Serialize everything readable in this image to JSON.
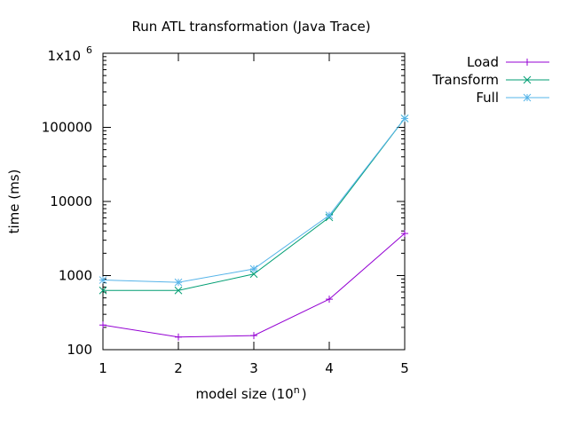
{
  "chart_data": {
    "type": "line",
    "title": "Run ATL transformation (Java Trace)",
    "xlabel": "model size (10",
    "xlabel_sup": "n",
    "xlabel_suffix": ")",
    "ylabel": "time (ms)",
    "x": [
      1,
      2,
      3,
      4,
      5
    ],
    "xlim": [
      1,
      5
    ],
    "ylim": [
      100,
      1000000
    ],
    "yscale": "log",
    "grid": false,
    "legend_position": "top-right, outside plot",
    "x_ticks": [
      "1",
      "2",
      "3",
      "4",
      "5"
    ],
    "y_ticks": [
      {
        "value": 100,
        "label": "100"
      },
      {
        "value": 1000,
        "label": "1000"
      },
      {
        "value": 10000,
        "label": "10000"
      },
      {
        "value": 100000,
        "label": "100000"
      },
      {
        "value": 1000000,
        "label": "1x10",
        "sup": "6"
      }
    ],
    "series": [
      {
        "name": "Load",
        "color": "#9400d3",
        "marker": "plus",
        "values": [
          215,
          148,
          155,
          480,
          3700
        ]
      },
      {
        "name": "Transform",
        "color": "#009e73",
        "marker": "cross",
        "values": [
          630,
          630,
          1050,
          6100,
          132000
        ]
      },
      {
        "name": "Full",
        "color": "#56b4e9",
        "marker": "star",
        "values": [
          870,
          810,
          1230,
          6500,
          132000
        ]
      }
    ]
  }
}
